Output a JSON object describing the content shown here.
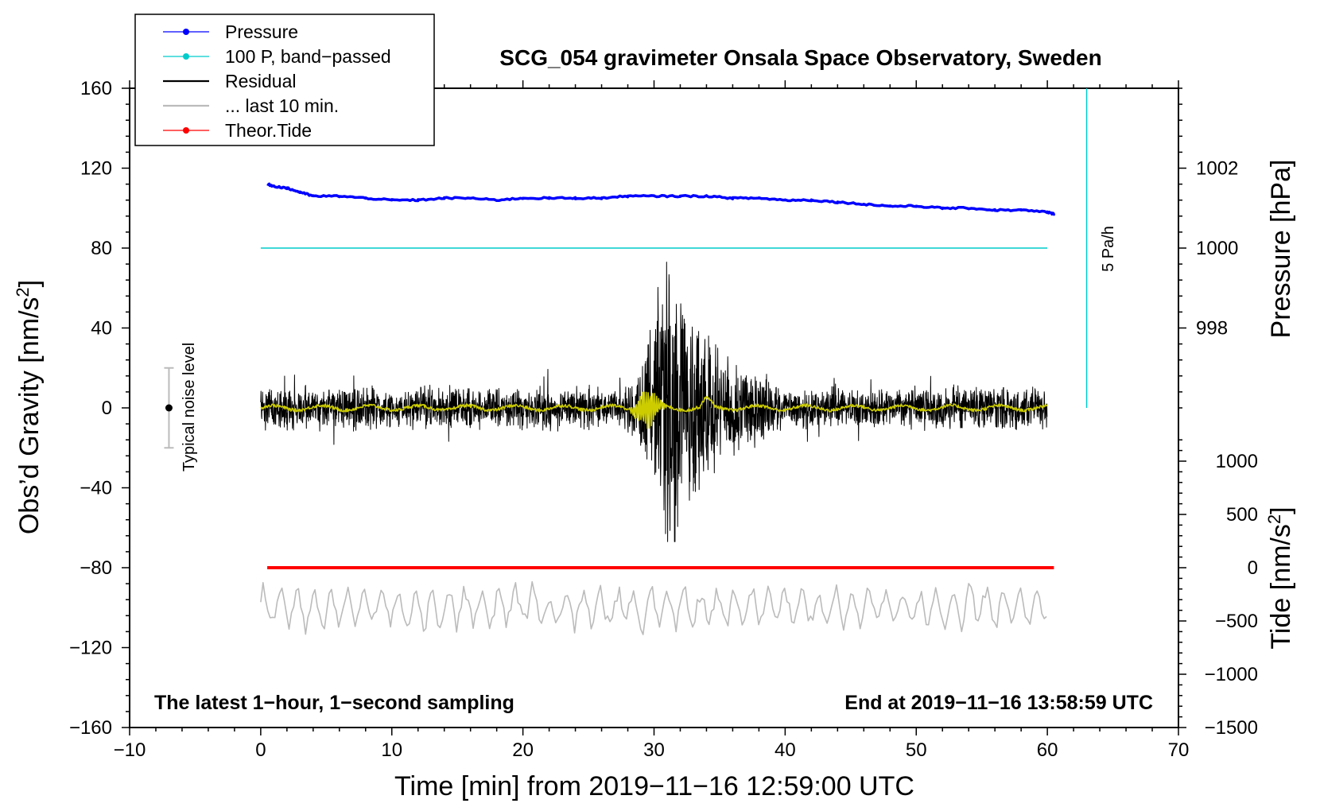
{
  "chart_data": {
    "type": "line",
    "title": "SCG_054 gravimeter Onsala Space Observatory, Sweden",
    "xlabel": "Time [min] from 2019−11−16 12:59:00 UTC",
    "ylabel": "Obs’d Gravity [nm/s",
    "ylabel_sup": "2",
    "ylabel_end": "]",
    "right_pressure_label": "Pressure [hPa]",
    "right_tide_label": "Tide [nm/s",
    "right_tide_sup": "2",
    "right_tide_end": "]",
    "xlim": [
      -10,
      70
    ],
    "ylim": [
      -160,
      160
    ],
    "x_ticks": [
      -10,
      0,
      10,
      20,
      30,
      40,
      50,
      60,
      70
    ],
    "x_tick_labels": [
      "−10",
      "0",
      "10",
      "20",
      "30",
      "40",
      "50",
      "60",
      "70"
    ],
    "y_ticks": [
      160,
      120,
      80,
      40,
      0,
      -40,
      -80,
      -120,
      -160
    ],
    "y_tick_labels": [
      "160",
      "120",
      "80",
      "40",
      "0",
      "−40",
      "−80",
      "−120",
      "−160"
    ],
    "pressure_ticks": [
      {
        "value": 1002,
        "y_equiv": 120,
        "label": "1002"
      },
      {
        "value": 1000,
        "y_equiv": 80,
        "label": "1000"
      },
      {
        "value": 998,
        "y_equiv": 40,
        "label": "998"
      }
    ],
    "tide_ticks": [
      {
        "value": 1000,
        "y_equiv": -26.7,
        "label": "1000"
      },
      {
        "value": 500,
        "y_equiv": -53.3,
        "label": "500"
      },
      {
        "value": 0,
        "y_equiv": -80,
        "label": "0"
      },
      {
        "value": -500,
        "y_equiv": -106.7,
        "label": "−500"
      },
      {
        "value": -1000,
        "y_equiv": -133.3,
        "label": "−1000"
      },
      {
        "value": -1500,
        "y_equiv": -160,
        "label": "−1500"
      }
    ],
    "legend": [
      {
        "name": "Pressure",
        "color": "#0000ff",
        "marker": true
      },
      {
        "name": "100 P, band−passed",
        "color": "#00cccc",
        "marker": true
      },
      {
        "name": "Residual",
        "color": "#000000",
        "marker": false
      },
      {
        "name": "... last 10 min.",
        "color": "#bbbbbb",
        "marker": false
      },
      {
        "name": "Theor.Tide",
        "color": "#ff0000",
        "marker": true
      }
    ],
    "series": [
      {
        "name": "Pressure",
        "color": "#0000ff",
        "x": [
          0.5,
          1,
          2,
          3,
          4,
          6,
          8,
          10,
          12,
          14,
          16,
          18,
          20,
          22,
          24,
          26,
          28,
          30,
          32,
          34,
          36,
          38,
          40,
          42,
          44,
          46,
          48,
          50,
          52,
          54,
          56,
          58,
          60,
          60.5
        ],
        "values": [
          112,
          111,
          110,
          108,
          106,
          106,
          105,
          104,
          104,
          105,
          105,
          104,
          105,
          105,
          105,
          105,
          106,
          106,
          106,
          106,
          105,
          105,
          104,
          104,
          103,
          102,
          101,
          101,
          100,
          100,
          99,
          99,
          98,
          97
        ]
      },
      {
        "name": "100 P, band−passed",
        "color": "#00cccc",
        "x": [
          0,
          60
        ],
        "values": [
          80,
          80
        ]
      },
      {
        "name": "Residual",
        "color": "#000000",
        "x_range": [
          0,
          60
        ],
        "noise_amplitude": 8,
        "event_peak_time": 31.2,
        "event_peak_amplitude": 72,
        "event_min": -67,
        "event_max": 73
      },
      {
        "name": "Residual smoothed",
        "color": "#cccc00",
        "x_range": [
          0,
          60
        ],
        "burst_center": 29.5,
        "burst_amplitude": 10
      },
      {
        "name": "... last 10 min.",
        "color": "#bbbbbb",
        "x_range": [
          0,
          60
        ],
        "baseline": -100,
        "amplitude": 12
      },
      {
        "name": "Theor.Tide",
        "color": "#ff0000",
        "x": [
          0.5,
          60.5
        ],
        "values": [
          -80,
          -80
        ]
      }
    ],
    "scale_bar": {
      "label": "5 Pa/h",
      "x": 63,
      "y_from": 0,
      "y_to": 160
    },
    "noise_indicator": {
      "label": "Typical noise level",
      "x": -7,
      "y_center": 0,
      "y_low": -20,
      "y_high": 20
    },
    "note_left": "The latest 1−hour, 1−second sampling",
    "note_right": "End at 2019−11−16 13:58:59 UTC"
  }
}
